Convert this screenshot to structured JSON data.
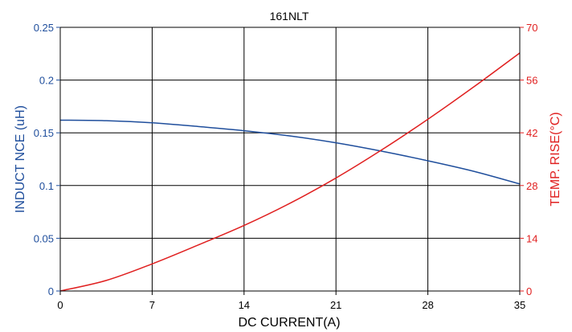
{
  "chart_data": {
    "type": "line",
    "title": "161NLT",
    "xlabel": "DC CURRENT(A)",
    "ylabel_left": "INDUCT  NCE (uH)",
    "ylabel_right": "TEMP. RISE(°C)",
    "xlim": [
      0,
      35
    ],
    "ylim_left": [
      0,
      0.25
    ],
    "ylim_right": [
      0,
      70
    ],
    "x_ticks": [
      "0",
      "7",
      "14",
      "21",
      "28",
      "35"
    ],
    "y_left_ticks": [
      "0",
      "0.05",
      "0.1",
      "0.15",
      "0.2",
      "0.25"
    ],
    "y_right_ticks": [
      "0",
      "14",
      "28",
      "42",
      "56",
      "70"
    ],
    "grid": true,
    "colors": {
      "inductance": "#1f4e9c",
      "temperature": "#e02020",
      "frame": "#000000",
      "grid": "#000000"
    },
    "series": [
      {
        "axis": "left",
        "color": "#1f4e9c",
        "x": [
          0,
          3.5,
          7,
          10.5,
          14,
          17.5,
          21,
          24.5,
          28,
          31.5,
          35
        ],
        "values": [
          0.162,
          0.1615,
          0.1595,
          0.156,
          0.152,
          0.147,
          0.1405,
          0.1325,
          0.1235,
          0.1135,
          0.1015
        ]
      },
      {
        "axis": "right",
        "color": "#e02020",
        "x": [
          0,
          3.5,
          7,
          10.5,
          14,
          17.5,
          21,
          24.5,
          28,
          31.5,
          35
        ],
        "values": [
          0,
          2.8,
          7.2,
          12.2,
          17.4,
          23.3,
          30.0,
          37.5,
          45.6,
          54.2,
          63.2
        ]
      }
    ]
  }
}
